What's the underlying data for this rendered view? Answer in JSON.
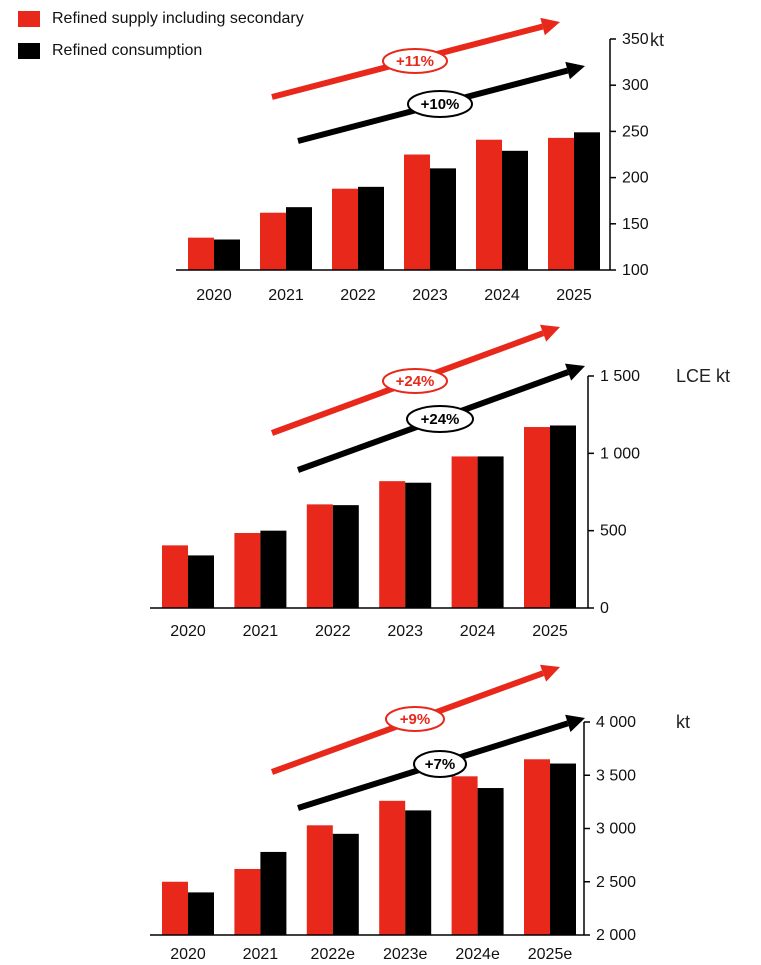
{
  "colors": {
    "supply": "#e8281b",
    "consumption": "#000000"
  },
  "legend": [
    {
      "label": "Refined supply including secondary",
      "color": "#e8281b"
    },
    {
      "label": "Refined consumption",
      "color": "#000000"
    }
  ],
  "chart_data": [
    {
      "type": "bar",
      "categories": [
        "2020",
        "2021",
        "2022",
        "2023",
        "2024",
        "2025"
      ],
      "series": [
        {
          "name": "Refined supply including secondary",
          "values": [
            135,
            162,
            188,
            225,
            241,
            243
          ]
        },
        {
          "name": "Refined consumption",
          "values": [
            133,
            168,
            190,
            210,
            229,
            249
          ]
        }
      ],
      "unit": "kt",
      "yticks": [
        "100",
        "150",
        "200",
        "250",
        "300",
        "350"
      ],
      "ylim": [
        100,
        350
      ],
      "grid": false,
      "legend_position": "top-left",
      "growth": {
        "supply": "+11%",
        "consumption": "+10%"
      }
    },
    {
      "type": "bar",
      "categories": [
        "2020",
        "2021",
        "2022",
        "2023",
        "2024",
        "2025"
      ],
      "series": [
        {
          "name": "Refined supply including secondary",
          "values": [
            405,
            485,
            670,
            820,
            980,
            1170
          ]
        },
        {
          "name": "Refined consumption",
          "values": [
            340,
            500,
            665,
            810,
            980,
            1180
          ]
        }
      ],
      "unit": "LCE kt",
      "yticks": [
        "0",
        "500",
        "1 000",
        "1 500"
      ],
      "ylim": [
        0,
        1500
      ],
      "grid": false,
      "growth": {
        "supply": "+24%",
        "consumption": "+24%"
      }
    },
    {
      "type": "bar",
      "categories": [
        "2020",
        "2021",
        "2022e",
        "2023e",
        "2024e",
        "2025e"
      ],
      "series": [
        {
          "name": "Refined supply including secondary",
          "values": [
            2500,
            2620,
            3030,
            3260,
            3490,
            3650
          ]
        },
        {
          "name": "Refined consumption",
          "values": [
            2400,
            2780,
            2950,
            3170,
            3380,
            3610
          ]
        }
      ],
      "unit": "kt",
      "yticks": [
        "2 000",
        "2 500",
        "3 000",
        "3 500",
        "4 000"
      ],
      "ylim": [
        2000,
        4000
      ],
      "grid": false,
      "growth": {
        "supply": "+9%",
        "consumption": "+7%"
      }
    }
  ]
}
